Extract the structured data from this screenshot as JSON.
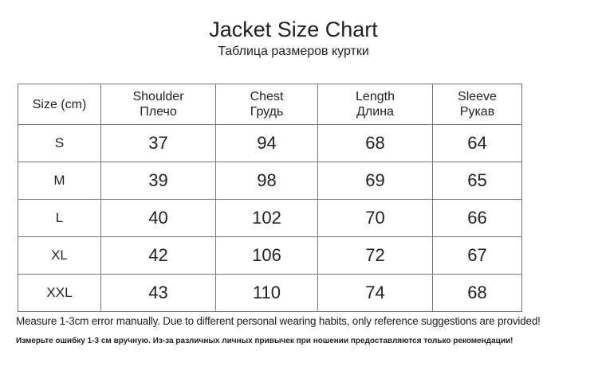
{
  "title": "Jacket Size Chart",
  "subtitle": "Таблица размеров куртки",
  "table": {
    "headers": [
      {
        "en": "Size (cm)",
        "ru": ""
      },
      {
        "en": "Shoulder",
        "ru": "Плечо"
      },
      {
        "en": "Chest",
        "ru": "Грудь"
      },
      {
        "en": "Length",
        "ru": "Длина"
      },
      {
        "en": "Sleeve",
        "ru": "Рукав"
      }
    ],
    "rows": [
      [
        "S",
        "37",
        "94",
        "68",
        "64"
      ],
      [
        "M",
        "39",
        "98",
        "69",
        "65"
      ],
      [
        "L",
        "40",
        "102",
        "70",
        "66"
      ],
      [
        "XL",
        "42",
        "106",
        "72",
        "67"
      ],
      [
        "XXL",
        "43",
        "110",
        "74",
        "68"
      ]
    ]
  },
  "notes": {
    "en": "Measure 1-3cm error manually. Due to different personal wearing habits, only reference suggestions are provided!",
    "ru": "Измерьте ошибку 1-3 см вручную. Из-за различных личных привычек при ношении предоставляются только рекомендации!"
  }
}
